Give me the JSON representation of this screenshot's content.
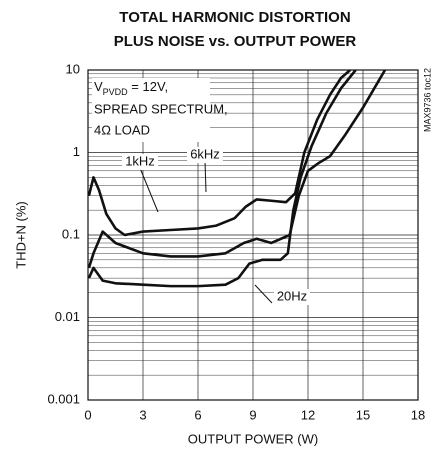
{
  "chart_data": {
    "type": "line",
    "title": [
      "TOTAL HARMONIC DISTORTION",
      "PLUS NOISE vs. OUTPUT POWER"
    ],
    "xlabel": "OUTPUT POWER (W)",
    "ylabel": "THD+N (%)",
    "side_note": "MAX9736 toc12",
    "annotation": {
      "line1": [
        "V",
        "PVDD",
        " = 12V,"
      ],
      "line2": "SPREAD SPECTRUM,",
      "line3": "4Ω LOAD"
    },
    "xlim": [
      0,
      18
    ],
    "xticks": [
      0,
      3,
      6,
      9,
      12,
      15,
      18
    ],
    "ylim": [
      0.001,
      10
    ],
    "yscale": "log",
    "yticks": [
      0.001,
      0.01,
      0.1,
      1,
      10
    ],
    "yminorticks": [
      0.002,
      0.003,
      0.004,
      0.005,
      0.006,
      0.007,
      0.008,
      0.009,
      0.02,
      0.03,
      0.04,
      0.05,
      0.06,
      0.07,
      0.08,
      0.09,
      0.2,
      0.3,
      0.4,
      0.5,
      0.6,
      0.7,
      0.8,
      0.9,
      2,
      3,
      4,
      5,
      6,
      7,
      8,
      9
    ],
    "grid": true,
    "series": [
      {
        "name": "6kHz",
        "color": "#111111",
        "x": [
          0.05,
          0.3,
          0.6,
          1.0,
          1.5,
          2.0,
          3.0,
          4.5,
          6.0,
          7.0,
          8.0,
          8.6,
          9.2,
          10.0,
          10.8,
          11.3,
          11.8,
          12.5,
          13.2,
          13.8,
          14.3
        ],
        "values": [
          0.3,
          0.5,
          0.35,
          0.18,
          0.12,
          0.1,
          0.11,
          0.115,
          0.12,
          0.13,
          0.16,
          0.22,
          0.27,
          0.26,
          0.25,
          0.32,
          1.0,
          2.5,
          5.0,
          8.0,
          10
        ]
      },
      {
        "name": "1kHz",
        "color": "#111111",
        "x": [
          0.05,
          0.3,
          0.8,
          1.5,
          3.0,
          4.5,
          6.0,
          7.5,
          8.5,
          9.2,
          10.0,
          11.0,
          11.5,
          12.0,
          12.6,
          13.2,
          14.0,
          15.0,
          16.2
        ],
        "values": [
          0.04,
          0.06,
          0.11,
          0.08,
          0.06,
          0.055,
          0.055,
          0.06,
          0.08,
          0.09,
          0.08,
          0.1,
          0.3,
          0.6,
          0.75,
          0.9,
          1.6,
          3.5,
          10
        ]
      },
      {
        "name": "20Hz",
        "color": "#111111",
        "x": [
          0.05,
          0.3,
          0.8,
          1.5,
          3.0,
          4.5,
          6.0,
          7.5,
          8.2,
          8.8,
          9.5,
          10.5,
          10.9,
          11.2,
          11.6,
          12.2,
          13.0,
          13.8,
          14.6
        ],
        "values": [
          0.03,
          0.04,
          0.028,
          0.026,
          0.025,
          0.024,
          0.024,
          0.025,
          0.03,
          0.045,
          0.05,
          0.05,
          0.06,
          0.2,
          0.5,
          1.2,
          3.0,
          6.0,
          10
        ]
      }
    ]
  }
}
